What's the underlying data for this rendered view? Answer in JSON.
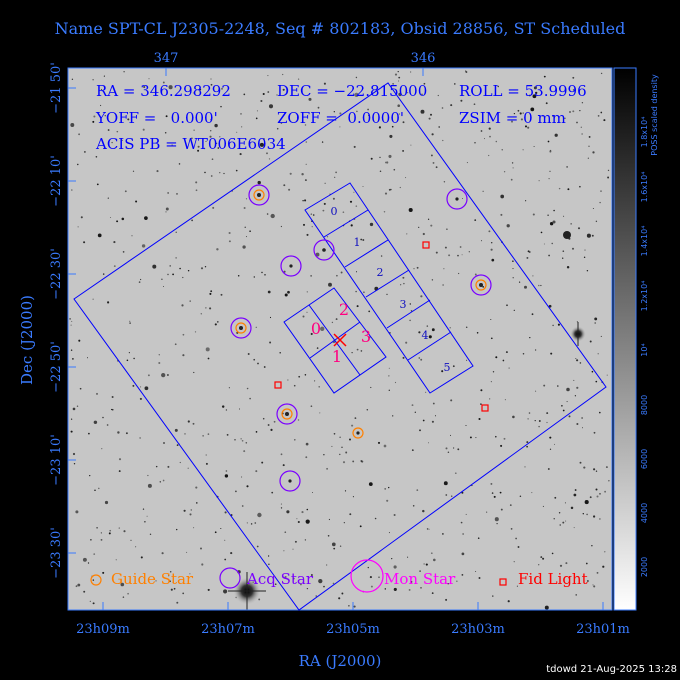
{
  "title": "Name SPT-CL J2305-2248, Seq # 802183, Obsid 28856, ST Scheduled",
  "colors": {
    "axis": "#3a7bff",
    "overlay": "#0000ff",
    "guide": "#ff8000",
    "acq": "#7a00ff",
    "mon": "#ff00ff",
    "fid": "#ff0000",
    "ccd_label_i": "#ff0080",
    "ccd_label_s": "#1010c0"
  },
  "info": {
    "ra": "RA = 346.298292",
    "dec": "DEC = −22.815000",
    "roll": "ROLL = 53.9996",
    "yoff": "YOFF =   0.000'",
    "zoff": "ZOFF =  0.0000'",
    "zsim": "ZSIM = 0 mm",
    "pb": "ACIS PB = WT006E6034"
  },
  "axes": {
    "x_label": "RA (J2000)",
    "y_label": "Dec (J2000)",
    "x_ticks_bottom": [
      "23h09m",
      "23h07m",
      "23h05m",
      "23h03m",
      "23h01m"
    ],
    "x_ticks_top": [
      "347",
      "346"
    ],
    "y_ticks": [
      "−21 50'",
      "−22 10'",
      "−22 30'",
      "−22 50'",
      "−23 10'",
      "−23 30'"
    ]
  },
  "colorbar": {
    "label": "POSS scaled density",
    "ticks": [
      "2000",
      "4000",
      "6000",
      "8000",
      "10⁴",
      "1.2x10⁴",
      "1.4x10⁴",
      "1.6x10⁴",
      "1.8x10⁴"
    ]
  },
  "ccd_labels": {
    "acis_i": [
      "0",
      "2",
      "3",
      "1"
    ],
    "acis_s": [
      "0",
      "1",
      "2",
      "3",
      "4",
      "5"
    ]
  },
  "legend": {
    "guide": "Guide Star",
    "acq": "Acq Star",
    "mon": "Mon Star",
    "fid": "Fid Light"
  },
  "footer": "tdowd 21-Aug-2025 13:28"
}
